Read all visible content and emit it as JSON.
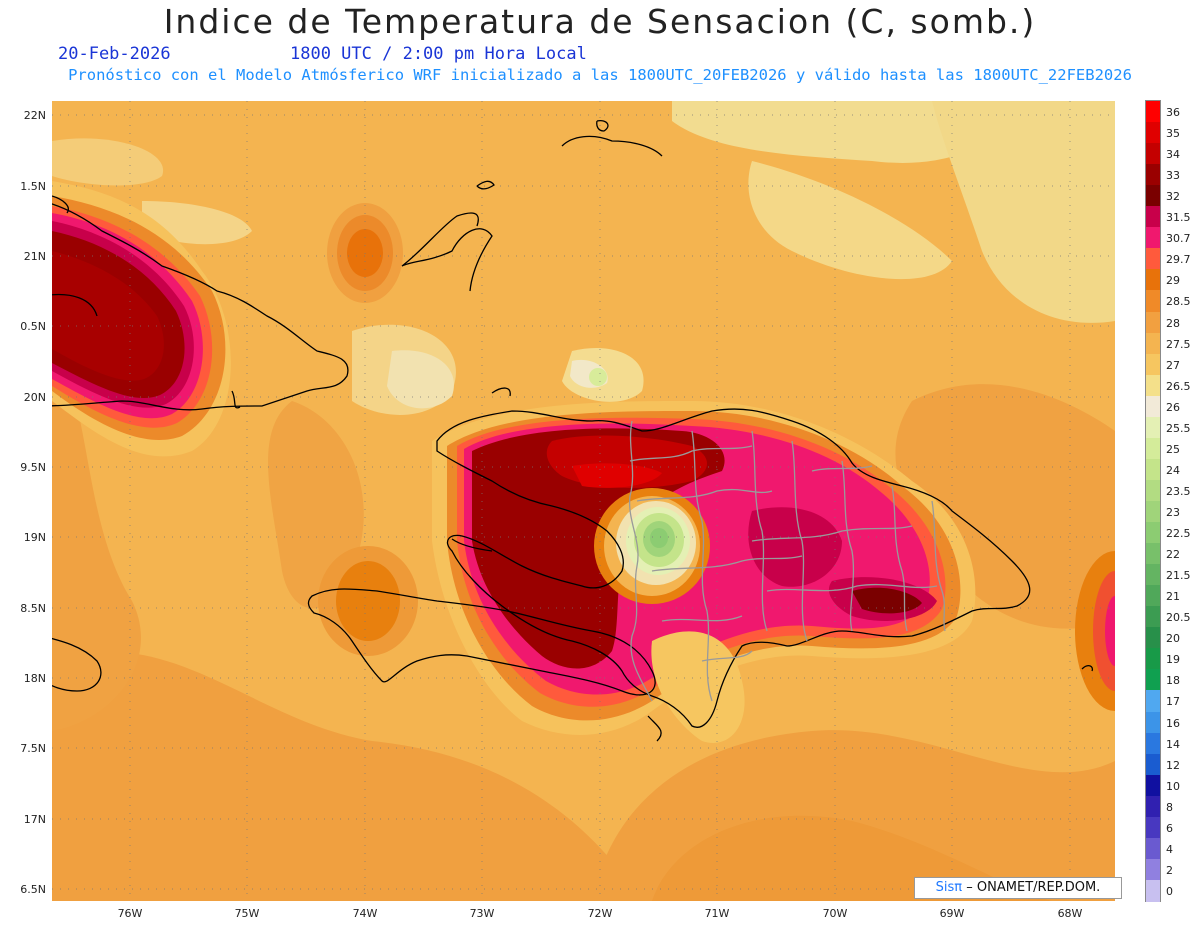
{
  "header": {
    "title": "Indice de Temperatura de Sensacion (C, somb.)",
    "date": "20-Feb-2026",
    "time": "1800 UTC / 2:00 pm Hora Local",
    "description": "Pronóstico con el Modelo Atmósferico WRF inicializado a las 1800UTC_20FEB2026 y válido hasta las  1800UTC_22FEB2026"
  },
  "map": {
    "y_axis_labels": [
      "22N",
      "1.5N",
      "21N",
      "0.5N",
      "20N",
      "9.5N",
      "19N",
      "8.5N",
      "18N",
      "7.5N",
      "17N",
      "6.5N"
    ],
    "x_axis_labels": [
      "76W",
      "75W",
      "74W",
      "73W",
      "72W",
      "71W",
      "70W",
      "69W",
      "68W"
    ]
  },
  "colorbar": {
    "labels": [
      "36",
      "35",
      "34",
      "33",
      "32",
      "31.5",
      "30.7",
      "29.7",
      "29",
      "28.5",
      "28",
      "27.5",
      "27",
      "26.5",
      "26",
      "25.5",
      "25",
      "24",
      "23.5",
      "23",
      "22.5",
      "22",
      "21.5",
      "21",
      "20.5",
      "20",
      "19",
      "18",
      "17",
      "16",
      "14",
      "12",
      "10",
      "8",
      "6",
      "4",
      "2",
      "0"
    ],
    "colors": [
      "#ff0000",
      "#e00000",
      "#c40000",
      "#9a0000",
      "#7a0000",
      "#c8004a",
      "#f0186e",
      "#ff5a3c",
      "#e8720a",
      "#f08a28",
      "#f2a040",
      "#f4b450",
      "#f6c660",
      "#f4e08a",
      "#f2ead8",
      "#e4f0b4",
      "#d4ec9a",
      "#c4e48a",
      "#b2dc82",
      "#a0d47a",
      "#8ccc72",
      "#78c06a",
      "#64b462",
      "#50a85a",
      "#3c9c52",
      "#28904a",
      "#189a48",
      "#10a050",
      "#50a8f0",
      "#3c94e8",
      "#2a78e0",
      "#1a5cd0",
      "#1010a0",
      "#3020b0",
      "#4838c0",
      "#6a5ad0",
      "#9080e0",
      "#c8c0f0"
    ]
  },
  "credit": {
    "brand": "Sisπ",
    "text": "–  ONAMET/REP.DOM."
  }
}
